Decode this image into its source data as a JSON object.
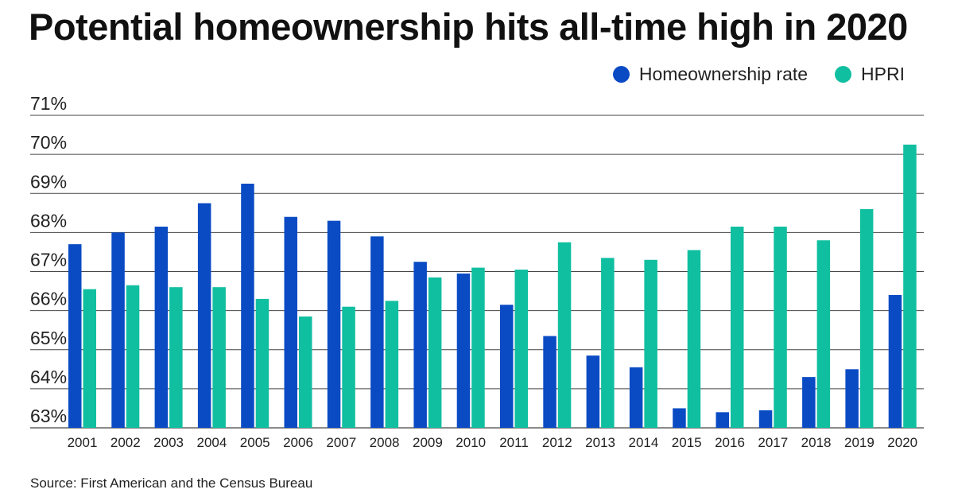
{
  "title": "Potential homeownership hits all-time high in 2020",
  "source": "Source: First American and the Census Bureau",
  "colors": {
    "homeownership": "#0a4bc4",
    "hpri": "#10bfa0",
    "grid": "#444444"
  },
  "chart_data": {
    "type": "bar",
    "title": "Potential homeownership hits all-time high in 2020",
    "xlabel": "",
    "ylabel": "",
    "ylim": [
      63,
      71
    ],
    "yticks": [
      "63%",
      "64%",
      "65%",
      "66%",
      "67%",
      "68%",
      "69%",
      "70%",
      "71%"
    ],
    "grid": "horizontal",
    "legend_position": "top-right",
    "categories": [
      "2001",
      "2002",
      "2003",
      "2004",
      "2005",
      "2006",
      "2007",
      "2008",
      "2009",
      "2010",
      "2011",
      "2012",
      "2013",
      "2014",
      "2015",
      "2016",
      "2017",
      "2018",
      "2019",
      "2020"
    ],
    "series": [
      {
        "name": "Homeownership rate",
        "color": "#0a4bc4",
        "values": [
          67.7,
          68.0,
          68.15,
          68.75,
          69.25,
          68.4,
          68.3,
          67.9,
          67.25,
          66.95,
          66.15,
          65.35,
          64.85,
          64.55,
          63.5,
          63.4,
          63.45,
          64.3,
          64.5,
          66.4
        ]
      },
      {
        "name": "HPRI",
        "color": "#10bfa0",
        "values": [
          66.55,
          66.65,
          66.6,
          66.6,
          66.3,
          65.85,
          66.1,
          66.25,
          66.85,
          67.1,
          67.05,
          67.75,
          67.35,
          67.3,
          67.55,
          68.15,
          68.15,
          67.8,
          68.6,
          70.25
        ]
      }
    ]
  }
}
